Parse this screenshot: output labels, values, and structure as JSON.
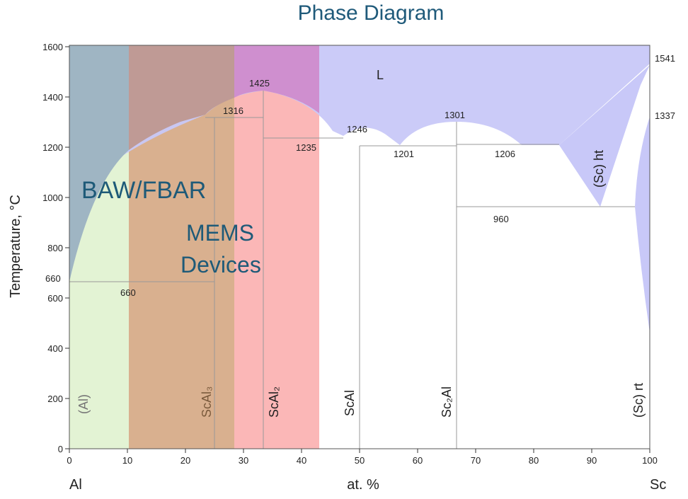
{
  "title": "Phase Diagram",
  "y_axis_label": "Temperature, °C",
  "x_axis_label": "at. %",
  "x_left_element": "Al",
  "x_right_element": "Sc",
  "x_ticks": [
    "0",
    "10",
    "20",
    "30",
    "40",
    "50",
    "60",
    "70",
    "80",
    "90",
    "100"
  ],
  "y_ticks": [
    "0",
    "200",
    "400",
    "600",
    "800",
    "1000",
    "1200",
    "1400",
    "1600"
  ],
  "overlay_labels": {
    "baw": "BAW/FBAR",
    "mems_1": "MEMS",
    "mems_2": "Devices"
  },
  "phase_labels": {
    "liquid": "L",
    "al_solid": "(Al)",
    "scal3": "ScAl₃",
    "scal2": "ScAl₂",
    "scal": "ScAl",
    "sc2al": "Sc₂Al",
    "sc_ht": "(Sc) ht",
    "sc_rt": "(Sc) rt"
  },
  "temperature_labels": {
    "t1541": "1541",
    "t1425": "1425",
    "t1337": "1337",
    "t1316": "1316",
    "t1301": "1301",
    "t1246": "1246",
    "t1235": "1235",
    "t1206": "1206",
    "t1201": "1201",
    "t960": "960",
    "t660_axis": "660",
    "t660_line": "660"
  },
  "colors": {
    "title": "#1f5a7a",
    "liquid": "#c8c8f8",
    "band_baw": "#9fb5c3",
    "band_baw_light": "#e3f3d4",
    "band_mems": "#d9b08f",
    "band_scal2": "#fbb7b7",
    "band_top_overlap": "#cf8fcf",
    "overlay_text": "#1e5a78",
    "lines": "#999999"
  }
}
